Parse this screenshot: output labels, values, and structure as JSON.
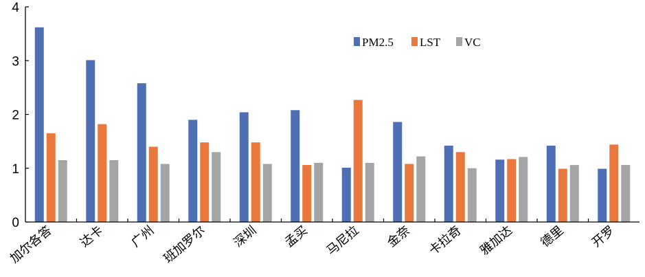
{
  "chart_data": {
    "type": "bar",
    "categories": [
      "加尔各答",
      "达卡",
      "广州",
      "班加罗尔",
      "深圳",
      "孟买",
      "马尼拉",
      "金奈",
      "卡拉奇",
      "雅加达",
      "德里",
      "开罗"
    ],
    "series": [
      {
        "name": "PM2.5",
        "color": "#4f6fb5",
        "values": [
          3.62,
          3.01,
          2.58,
          1.9,
          2.04,
          2.08,
          1.01,
          1.86,
          1.42,
          1.16,
          1.42,
          0.99
        ]
      },
      {
        "name": "LST",
        "color": "#e8783b",
        "values": [
          1.65,
          1.82,
          1.4,
          1.48,
          1.48,
          1.06,
          2.27,
          1.08,
          1.3,
          1.17,
          0.99,
          1.44
        ]
      },
      {
        "name": "VC",
        "color": "#a5a5a5",
        "values": [
          1.15,
          1.15,
          1.08,
          1.3,
          1.08,
          1.1,
          1.1,
          1.22,
          1.0,
          1.21,
          1.06,
          1.06
        ]
      }
    ],
    "ylim": [
      0,
      4
    ],
    "yticks": [
      "0",
      "1",
      "2",
      "3",
      "4"
    ],
    "ytick_values": [
      0,
      1,
      2,
      3,
      4
    ],
    "legend_position": "top-right",
    "grid": false,
    "title": "",
    "xlabel": "",
    "ylabel": ""
  }
}
